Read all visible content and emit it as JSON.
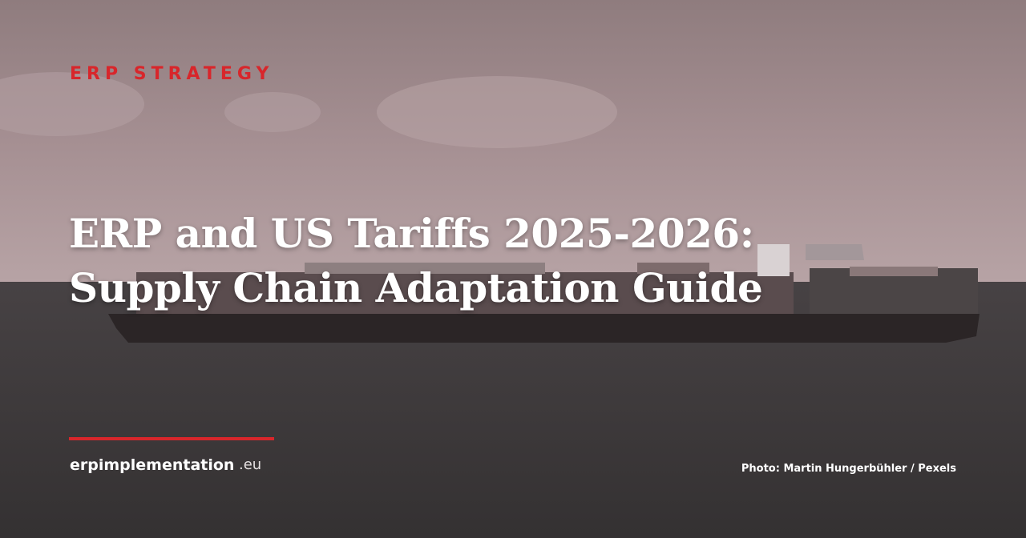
{
  "category": "ERP STRATEGY",
  "title": [
    "ERP and US Tariffs 2025-2026:",
    "Supply Chain Adaptation Guide"
  ],
  "brand": {
    "name": "erpimplementation",
    "tld": ".eu"
  },
  "credit": "Photo: Martin Hungerbühler / Pexels"
}
